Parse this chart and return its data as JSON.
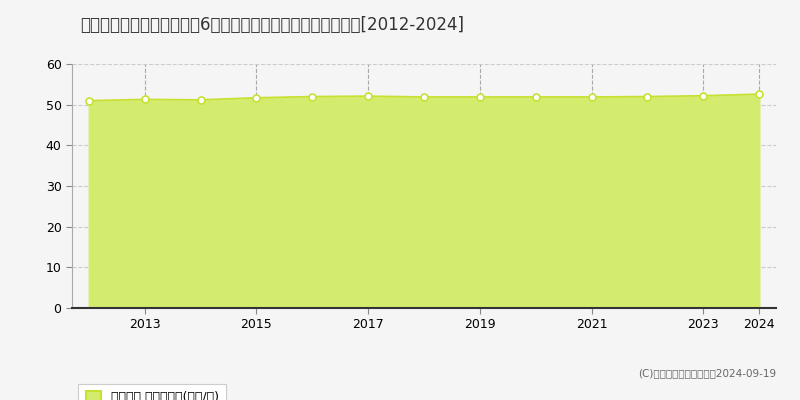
{
  "title": "千葉県八千代市ゆりのき台6丁目６番８　基準地価　地価推移[2012-2024]",
  "years": [
    2012,
    2013,
    2014,
    2015,
    2016,
    2017,
    2018,
    2019,
    2020,
    2021,
    2022,
    2023,
    2024
  ],
  "values": [
    51.0,
    51.3,
    51.2,
    51.7,
    52.0,
    52.1,
    51.9,
    51.9,
    51.9,
    51.9,
    52.0,
    52.2,
    52.6
  ],
  "ylim": [
    0,
    60
  ],
  "yticks": [
    0,
    10,
    20,
    30,
    40,
    50,
    60
  ],
  "line_color": "#c8e032",
  "fill_color": "#d4ec6e",
  "fill_alpha": 1.0,
  "marker_color": "#ffffff",
  "marker_edge_color": "#c8e032",
  "bg_color": "#f5f5f5",
  "plot_bg_color": "#f5f5f5",
  "grid_h_color": "#cccccc",
  "grid_v_color": "#aaaaaa",
  "title_fontsize": 12,
  "legend_label": "基準地価 平均坪単価(万円/坪)",
  "copyright_text": "(C)土地価格ドットコム　2024-09-19",
  "xticks": [
    2013,
    2015,
    2017,
    2019,
    2021,
    2023,
    2024
  ]
}
